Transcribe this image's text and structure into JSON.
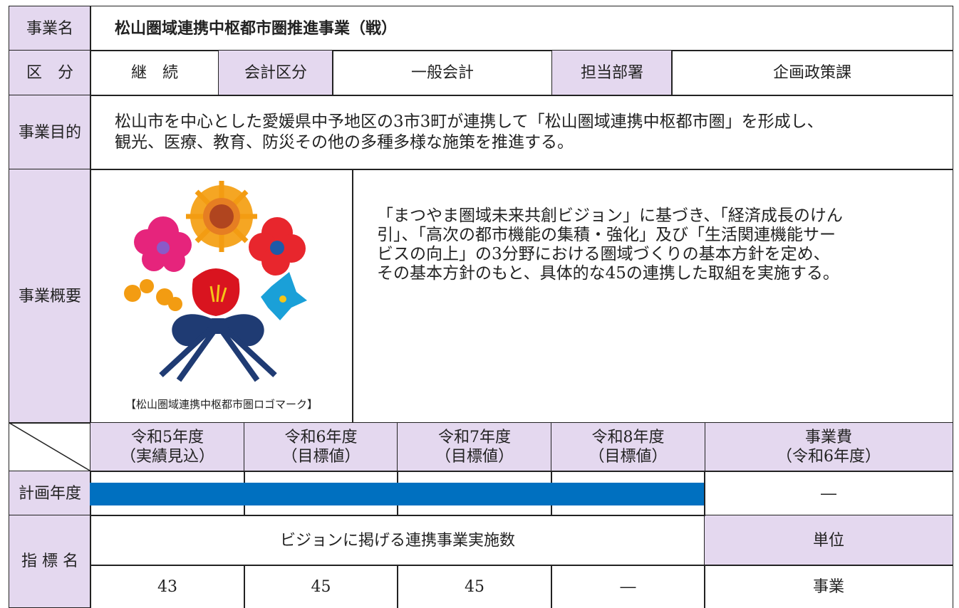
{
  "header": {
    "label": "事業名",
    "title": "松山圏域連携中枢都市圏推進事業（戦）"
  },
  "info": {
    "category_label": "区　分",
    "category": "継　続",
    "account_label": "会計区分",
    "account": "一般会計",
    "dept_label": "担当部署",
    "dept": "企画政策課"
  },
  "purpose": {
    "label": "事業目的",
    "lines": [
      "松山市を中心とした愛媛県中予地区の3市3町が連携して「松山圏域連携中枢都市圏」を形成し、",
      "観光、医療、教育、防災その他の多種多様な施策を推進する。"
    ]
  },
  "overview": {
    "label": "事業概要",
    "caption": "【松山圏域連携中枢都市圏ロゴマーク】",
    "lines": [
      "「まつやま圏域未来共創ビジョン」に基づき、「経済成長のけん",
      "引」、「高次の都市機能の集積・強化」及び「生活関連機能サー",
      "ビスの向上」の3分野における圏域づくりの基本方針を定め、",
      "その基本方針のもと、具体的な45の連携した取組を実施する。"
    ]
  },
  "schedule": {
    "columns": [
      [
        "令和5年度",
        "（実績見込）"
      ],
      [
        "令和6年度",
        "（目標値）"
      ],
      [
        "令和7年度",
        "（目標値）"
      ],
      [
        "令和8年度",
        "（目標値）"
      ]
    ],
    "cost_label": [
      "事業費",
      "（令和6年度）"
    ],
    "row_label": "計画年度",
    "cost": "―"
  },
  "indicator": {
    "label": "指 標 名",
    "name": "ビジョンに掲げる連携事業実施数",
    "unit_label": "単位",
    "values": [
      43,
      45,
      45,
      "―"
    ],
    "unit": "事業"
  }
}
